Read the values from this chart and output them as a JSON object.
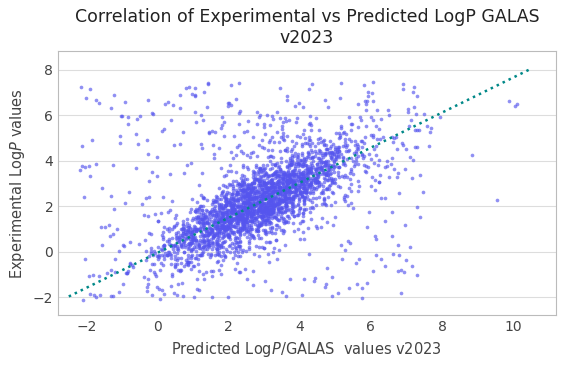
{
  "title_line1": "Correlation of Experimental vs Predicted LogP GALAS",
  "title_line2": "v2023",
  "xlabel": "Predicted Log$P$/GALAS  values v2023",
  "ylabel": "Experimental Log$P$ values",
  "xlim": [
    -2.8,
    11.2
  ],
  "ylim": [
    -2.8,
    8.8
  ],
  "xticks": [
    -2,
    0,
    2,
    4,
    6,
    8,
    10
  ],
  "yticks": [
    -2,
    0,
    2,
    4,
    6,
    8
  ],
  "scatter_color": "#5555ee",
  "scatter_alpha": 0.65,
  "scatter_size": 7,
  "trend_color": "#008888",
  "trend_linestyle": "dotted",
  "trend_linewidth": 1.8,
  "trend_x": [
    -2.5,
    10.5
  ],
  "trend_slope": 0.77,
  "trend_intercept": -0.05,
  "n_points": 3000,
  "random_seed": 7,
  "background_color": "#ffffff",
  "grid_color": "#dddddd",
  "title_fontsize": 12.5,
  "axis_label_fontsize": 10.5
}
